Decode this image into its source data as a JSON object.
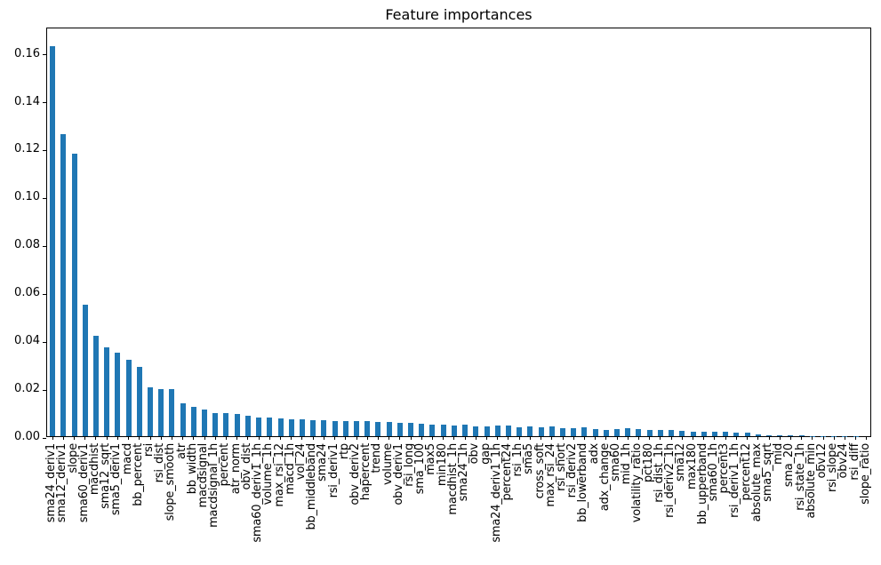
{
  "chart_data": {
    "type": "bar",
    "title": "Feature importances",
    "xlabel": "",
    "ylabel": "",
    "grid": false,
    "legend": false,
    "background_color": "#ffffff",
    "bar_color": "#1f77b4",
    "axis_color": "#000000",
    "x_tick_rotation": 90,
    "ylim": [
      0,
      0.171
    ],
    "yticks": [
      0.0,
      0.02,
      0.04,
      0.06,
      0.08,
      0.1,
      0.12,
      0.14,
      0.16
    ],
    "categories": [
      "sma24_deriv1",
      "sma12_deriv1",
      "slope",
      "sma60_deriv1",
      "macdhist",
      "sma12_sqrt",
      "sma5_deriv1",
      "macd",
      "bb_percent",
      "rsi",
      "rsi_dist",
      "slope_smooth",
      "atr",
      "bb_width",
      "macdsignal",
      "macdsignal_1h",
      "percent",
      "atr_norm",
      "obv_dist",
      "sma60_deriv1_1h",
      "volume_1h",
      "max_rsi_12",
      "macd_1h",
      "vol_24",
      "bb_middleband",
      "sma24",
      "rsi_deriv1",
      "rtp",
      "obv_deriv2",
      "hapercent",
      "trend",
      "volume",
      "obv_deriv1",
      "rsi_long",
      "sma_100",
      "max5",
      "min180",
      "macdhist_1h",
      "sma24_1h",
      "obv",
      "gap",
      "sma24_deriv1_1h",
      "percent24",
      "rsi_1h",
      "sma5",
      "cross_soft",
      "max_rsi_24",
      "rsi_short",
      "rsi_deriv2",
      "bb_lowerband",
      "adx",
      "adx_change",
      "sma60",
      "mid_1h",
      "volatility_ratio",
      "pct180",
      "rsi_dist_1h",
      "rsi_deriv2_1h",
      "sma12",
      "max180",
      "bb_upperband",
      "sma60_1h",
      "percent3",
      "rsi_deriv1_1h",
      "percent12",
      "absolute_max",
      "sma5_sqrt",
      "mid",
      "sma_20",
      "rsi_state_1h",
      "absolute_min",
      "obv12",
      "rsi_slope",
      "obv24",
      "rsi_diff",
      "slope_ratio"
    ],
    "values": [
      0.163,
      0.126,
      0.118,
      0.055,
      0.042,
      0.037,
      0.035,
      0.032,
      0.029,
      0.0205,
      0.0196,
      0.0195,
      0.0138,
      0.0122,
      0.0113,
      0.0098,
      0.0097,
      0.0092,
      0.0085,
      0.0078,
      0.0079,
      0.0073,
      0.0072,
      0.0071,
      0.0067,
      0.0068,
      0.0064,
      0.0063,
      0.0062,
      0.0062,
      0.006,
      0.0061,
      0.0055,
      0.0057,
      0.0052,
      0.0049,
      0.0047,
      0.0045,
      0.0047,
      0.0042,
      0.0042,
      0.0043,
      0.0045,
      0.0038,
      0.0041,
      0.0038,
      0.0041,
      0.0035,
      0.0032,
      0.0036,
      0.003,
      0.0027,
      0.0028,
      0.0032,
      0.0029,
      0.0026,
      0.0026,
      0.0025,
      0.0022,
      0.0019,
      0.0019,
      0.0018,
      0.0018,
      0.0015,
      0.0014,
      0.0009,
      0.0004,
      0.0003,
      0.0002,
      0.0002,
      0.0001,
      0.0001,
      7e-05,
      5e-05,
      3e-05,
      2e-05
    ]
  }
}
